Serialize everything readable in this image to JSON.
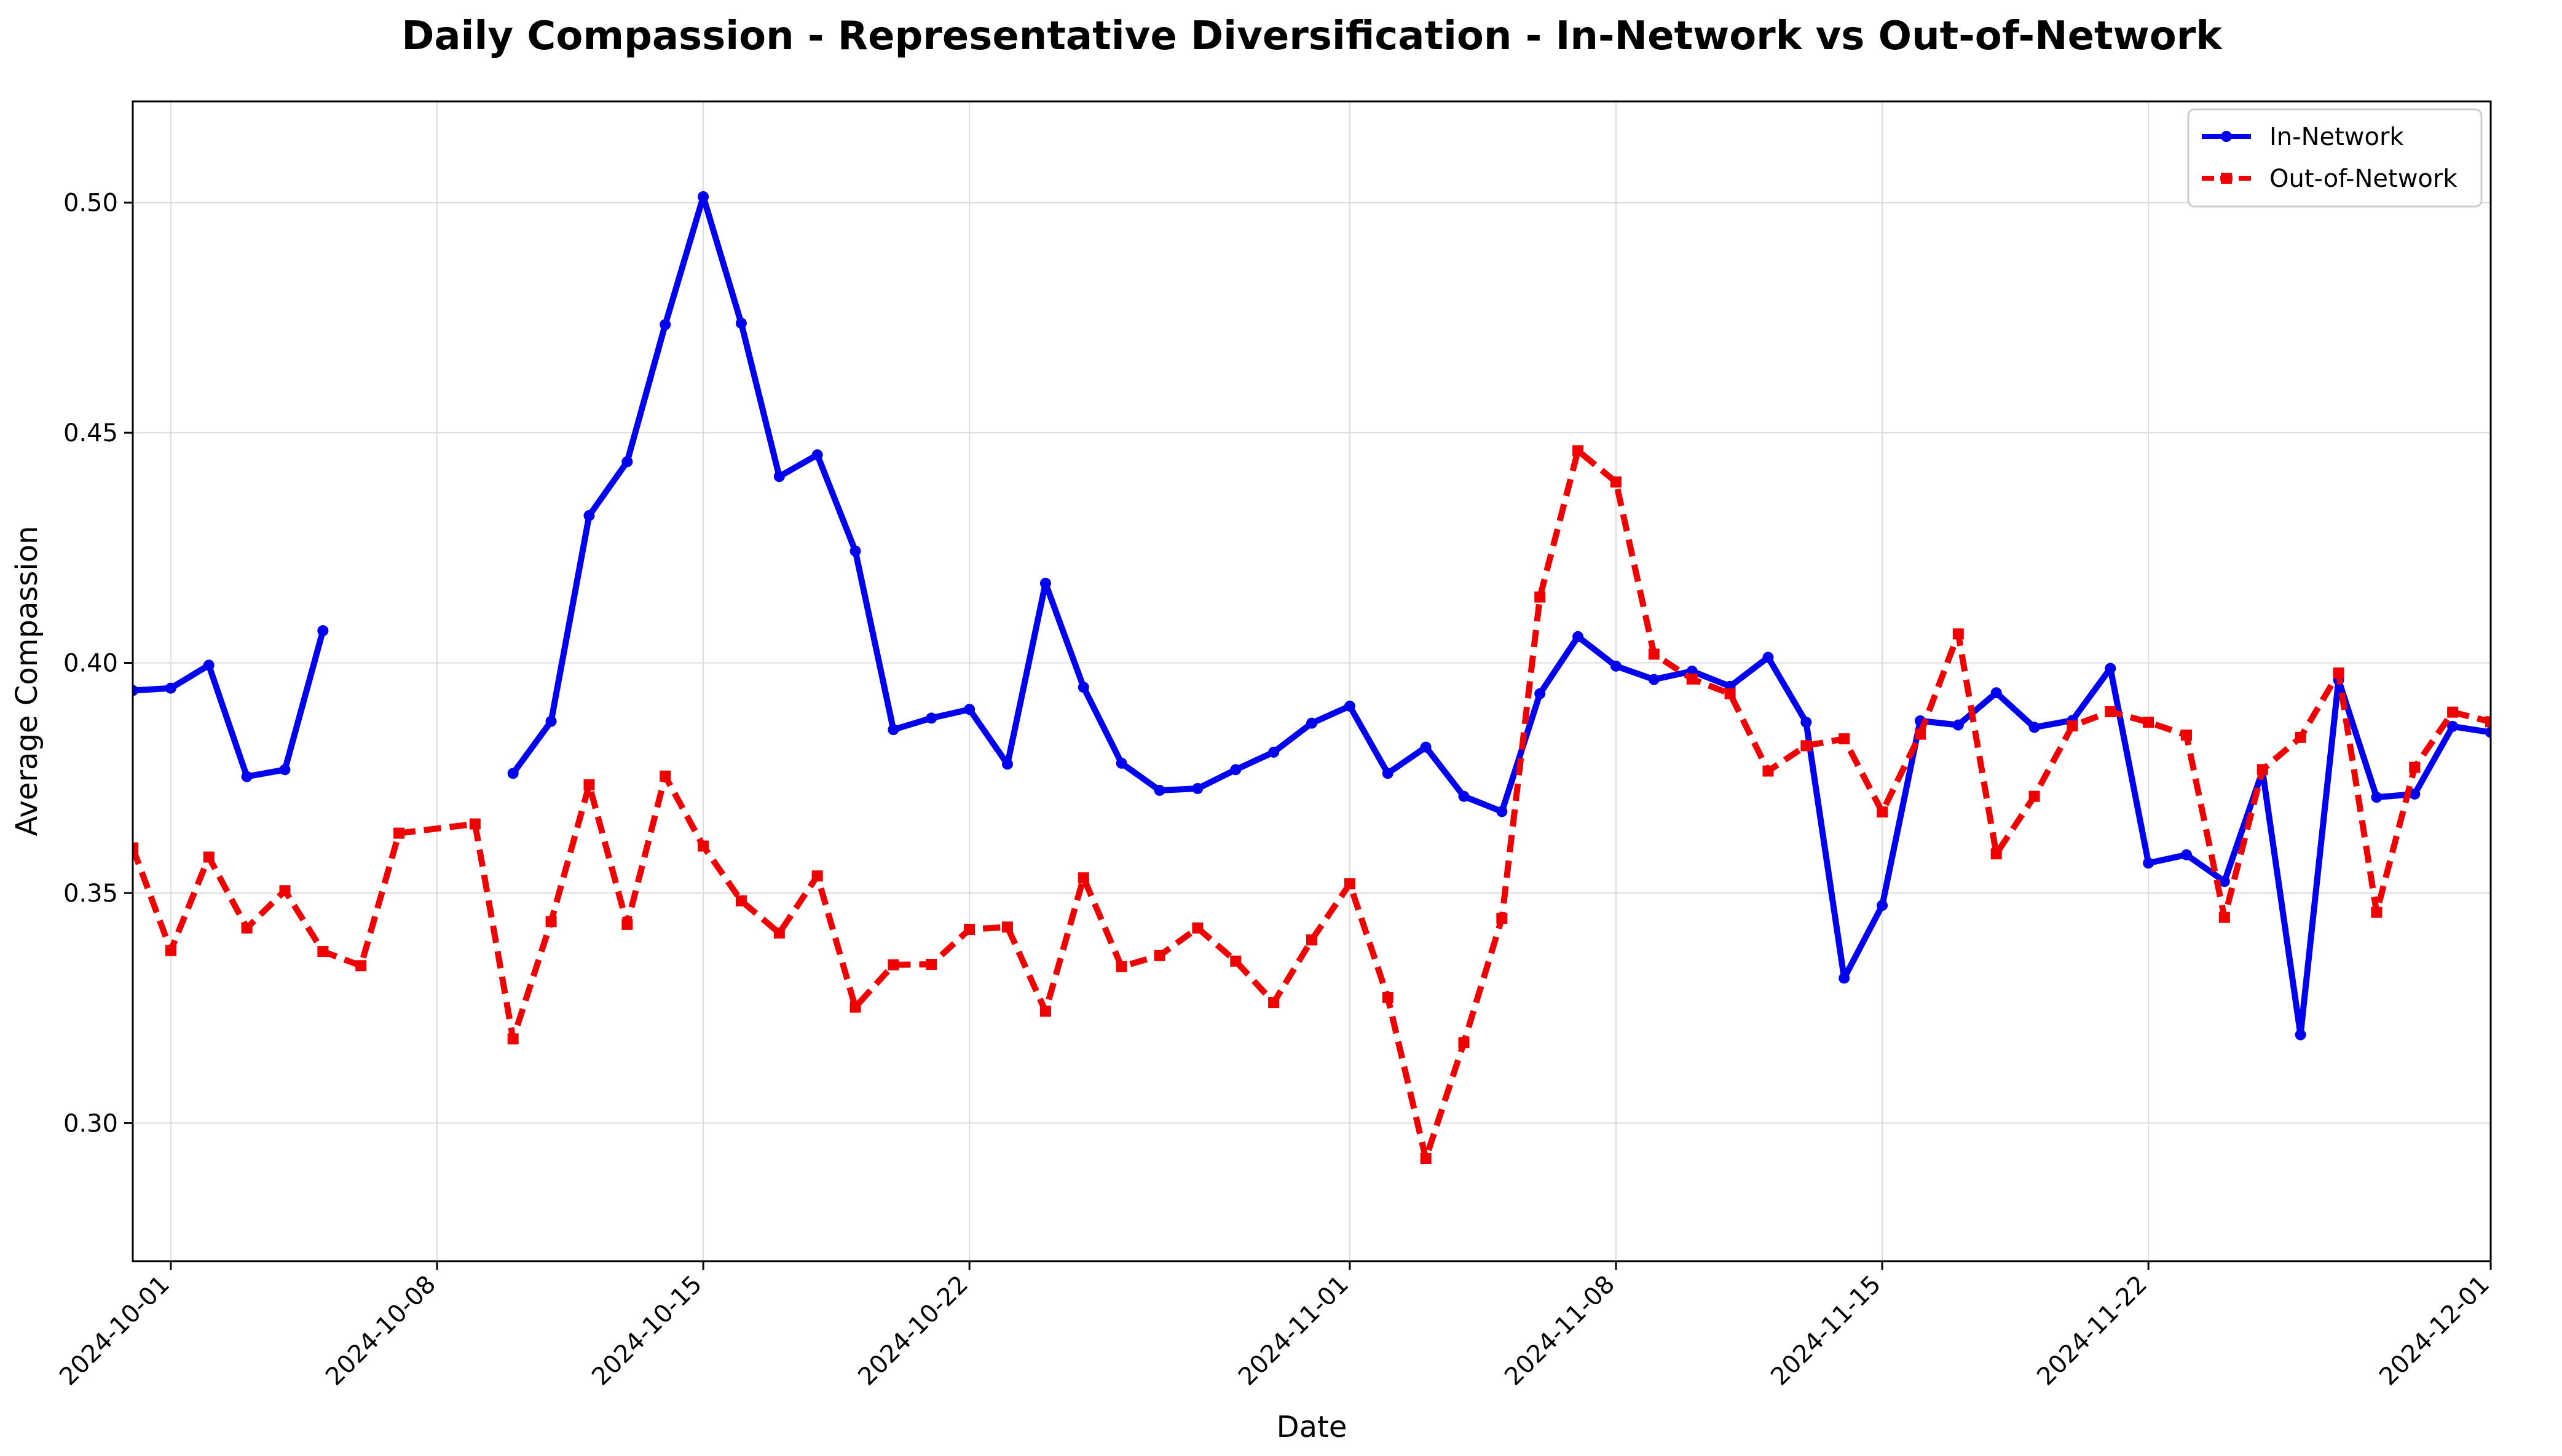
{
  "chart_data": {
    "type": "line",
    "title": "Daily Compassion - Representative Diversification - In-Network vs Out-of-Network",
    "xlabel": "Date",
    "ylabel": "Average Compassion",
    "xlim": [
      "2024-09-30",
      "2024-12-01"
    ],
    "ylim": [
      0.27,
      0.522
    ],
    "grid": true,
    "legend_position": "top-right",
    "x_ticks": [
      "2024-10-01",
      "2024-10-08",
      "2024-10-15",
      "2024-10-22",
      "2024-11-01",
      "2024-11-08",
      "2024-11-15",
      "2024-11-22",
      "2024-12-01"
    ],
    "y_ticks": [
      "0.30",
      "0.35",
      "0.40",
      "0.45",
      "0.50"
    ],
    "series": [
      {
        "name": "In-Network",
        "color": "#0000ee",
        "style": "solid",
        "marker": "circle",
        "points": [
          [
            "2024-09-30",
            0.394
          ],
          [
            "2024-10-01",
            0.3945
          ],
          [
            "2024-10-02",
            0.3995
          ],
          [
            "2024-10-03",
            0.3753
          ],
          [
            "2024-10-04",
            0.3768
          ],
          [
            "2024-10-05",
            0.407
          ],
          [
            "2024-10-06",
            null
          ],
          [
            "2024-10-07",
            null
          ],
          [
            "2024-10-08",
            null
          ],
          [
            "2024-10-09",
            null
          ],
          [
            "2024-10-10",
            0.376
          ],
          [
            "2024-10-11",
            0.3873
          ],
          [
            "2024-10-12",
            0.432
          ],
          [
            "2024-10-13",
            0.4437
          ],
          [
            "2024-10-14",
            0.4735
          ],
          [
            "2024-10-15",
            0.5013
          ],
          [
            "2024-10-16",
            0.4738
          ],
          [
            "2024-10-17",
            0.4405
          ],
          [
            "2024-10-18",
            0.4452
          ],
          [
            "2024-10-19",
            0.4243
          ],
          [
            "2024-10-20",
            0.3855
          ],
          [
            "2024-10-21",
            0.388
          ],
          [
            "2024-10-22",
            0.3899
          ],
          [
            "2024-10-23",
            0.378
          ],
          [
            "2024-10-24",
            0.4173
          ],
          [
            "2024-10-25",
            0.3947
          ],
          [
            "2024-10-26",
            0.3782
          ],
          [
            "2024-10-27",
            0.3723
          ],
          [
            "2024-10-28",
            0.3727
          ],
          [
            "2024-10-29",
            0.3768
          ],
          [
            "2024-10-30",
            0.3806
          ],
          [
            "2024-10-31",
            0.3869
          ],
          [
            "2024-11-01",
            0.3906
          ],
          [
            "2024-11-02",
            0.376
          ],
          [
            "2024-11-03",
            0.3817
          ],
          [
            "2024-11-04",
            0.371
          ],
          [
            "2024-11-05",
            0.3677
          ],
          [
            "2024-11-06",
            0.3933
          ],
          [
            "2024-11-07",
            0.4057
          ],
          [
            "2024-11-08",
            0.3993
          ],
          [
            "2024-11-09",
            0.3964
          ],
          [
            "2024-11-10",
            0.3982
          ],
          [
            "2024-11-11",
            0.3949
          ],
          [
            "2024-11-12",
            0.4012
          ],
          [
            "2024-11-13",
            0.3871
          ],
          [
            "2024-11-14",
            0.3315
          ],
          [
            "2024-11-15",
            0.3473
          ],
          [
            "2024-11-16",
            0.3874
          ],
          [
            "2024-11-17",
            0.3865
          ],
          [
            "2024-11-18",
            0.3935
          ],
          [
            "2024-11-19",
            0.386
          ],
          [
            "2024-11-20",
            0.3875
          ],
          [
            "2024-11-21",
            0.3988
          ],
          [
            "2024-11-22",
            0.3565
          ],
          [
            "2024-11-23",
            0.3583
          ],
          [
            "2024-11-24",
            0.3525
          ],
          [
            "2024-11-25",
            0.3765
          ],
          [
            "2024-11-26",
            0.3192
          ],
          [
            "2024-11-27",
            0.3963
          ],
          [
            "2024-11-28",
            0.3708
          ],
          [
            "2024-11-29",
            0.3715
          ],
          [
            "2024-11-30",
            0.3862
          ],
          [
            "2024-12-01",
            0.3849
          ]
        ]
      },
      {
        "name": "Out-of-Network",
        "color": "#ee0000",
        "style": "dashed",
        "marker": "square",
        "points": [
          [
            "2024-09-30",
            0.3598
          ],
          [
            "2024-10-01",
            0.3375
          ],
          [
            "2024-10-02",
            0.3578
          ],
          [
            "2024-10-03",
            0.3424
          ],
          [
            "2024-10-04",
            0.3505
          ],
          [
            "2024-10-05",
            0.3373
          ],
          [
            "2024-10-06",
            0.3342
          ],
          [
            "2024-10-07",
            0.363
          ],
          [
            "2024-10-09",
            0.365
          ],
          [
            "2024-10-10",
            0.3183
          ],
          [
            "2024-10-11",
            0.3438
          ],
          [
            "2024-10-12",
            0.3735
          ],
          [
            "2024-10-13",
            0.3432
          ],
          [
            "2024-10-14",
            0.3754
          ],
          [
            "2024-10-15",
            0.3602
          ],
          [
            "2024-10-16",
            0.3483
          ],
          [
            "2024-10-17",
            0.3413
          ],
          [
            "2024-10-18",
            0.3537
          ],
          [
            "2024-10-19",
            0.3252
          ],
          [
            "2024-10-20",
            0.3344
          ],
          [
            "2024-10-21",
            0.3345
          ],
          [
            "2024-10-22",
            0.3421
          ],
          [
            "2024-10-23",
            0.3426
          ],
          [
            "2024-10-24",
            0.3243
          ],
          [
            "2024-10-25",
            0.3533
          ],
          [
            "2024-10-26",
            0.334
          ],
          [
            "2024-10-27",
            0.3364
          ],
          [
            "2024-10-28",
            0.3424
          ],
          [
            "2024-10-29",
            0.3352
          ],
          [
            "2024-10-30",
            0.3262
          ],
          [
            "2024-10-31",
            0.3398
          ],
          [
            "2024-11-01",
            0.352
          ],
          [
            "2024-11-02",
            0.3273
          ],
          [
            "2024-11-03",
            0.2923
          ],
          [
            "2024-11-04",
            0.3175
          ],
          [
            "2024-11-05",
            0.3445
          ],
          [
            "2024-11-06",
            0.4143
          ],
          [
            "2024-11-07",
            0.4461
          ],
          [
            "2024-11-08",
            0.4393
          ],
          [
            "2024-11-09",
            0.4019
          ],
          [
            "2024-11-10",
            0.3965
          ],
          [
            "2024-11-11",
            0.3933
          ],
          [
            "2024-11-12",
            0.3765
          ],
          [
            "2024-11-13",
            0.382
          ],
          [
            "2024-11-14",
            0.3835
          ],
          [
            "2024-11-15",
            0.3676
          ],
          [
            "2024-11-16",
            0.3845
          ],
          [
            "2024-11-17",
            0.4063
          ],
          [
            "2024-11-18",
            0.3585
          ],
          [
            "2024-11-19",
            0.371
          ],
          [
            "2024-11-20",
            0.3863
          ],
          [
            "2024-11-21",
            0.3894
          ],
          [
            "2024-11-22",
            0.3871
          ],
          [
            "2024-11-23",
            0.3843
          ],
          [
            "2024-11-24",
            0.3447
          ],
          [
            "2024-11-25",
            0.3768
          ],
          [
            "2024-11-26",
            0.3838
          ],
          [
            "2024-11-27",
            0.3978
          ],
          [
            "2024-11-28",
            0.3458
          ],
          [
            "2024-11-29",
            0.3773
          ],
          [
            "2024-11-30",
            0.3893
          ],
          [
            "2024-12-01",
            0.3872
          ]
        ]
      }
    ]
  }
}
